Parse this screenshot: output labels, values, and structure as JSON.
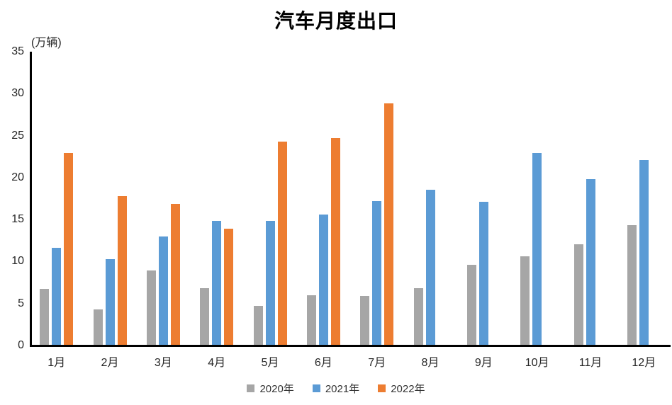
{
  "chart_data": {
    "type": "bar",
    "title": "汽车月度出口",
    "unit_label": "(万辆)",
    "categories": [
      "1月",
      "2月",
      "3月",
      "4月",
      "5月",
      "6月",
      "7月",
      "8月",
      "9月",
      "10月",
      "11月",
      "12月"
    ],
    "series": [
      {
        "name": "2020年",
        "color": "#A6A6A6",
        "values": [
          6.9,
          4.5,
          9.1,
          7.0,
          4.9,
          6.2,
          6.1,
          7.0,
          9.8,
          10.8,
          12.2,
          14.5
        ]
      },
      {
        "name": "2021年",
        "color": "#5B9BD5",
        "values": [
          11.8,
          10.5,
          13.2,
          15.0,
          15.0,
          15.8,
          17.4,
          18.7,
          17.3,
          23.1,
          20.0,
          22.3
        ]
      },
      {
        "name": "2022年",
        "color": "#ED7D31",
        "values": [
          23.1,
          18.0,
          17.0,
          14.1,
          24.5,
          24.9,
          29.0,
          null,
          null,
          null,
          null,
          null
        ]
      }
    ],
    "yticks": [
      0,
      5,
      10,
      15,
      20,
      25,
      30,
      35
    ],
    "ylim": [
      0,
      35
    ],
    "xlabel": "",
    "ylabel": "",
    "grid": false,
    "legend_position": "bottom",
    "axis_color": "#000000",
    "text_color": "#262626"
  }
}
